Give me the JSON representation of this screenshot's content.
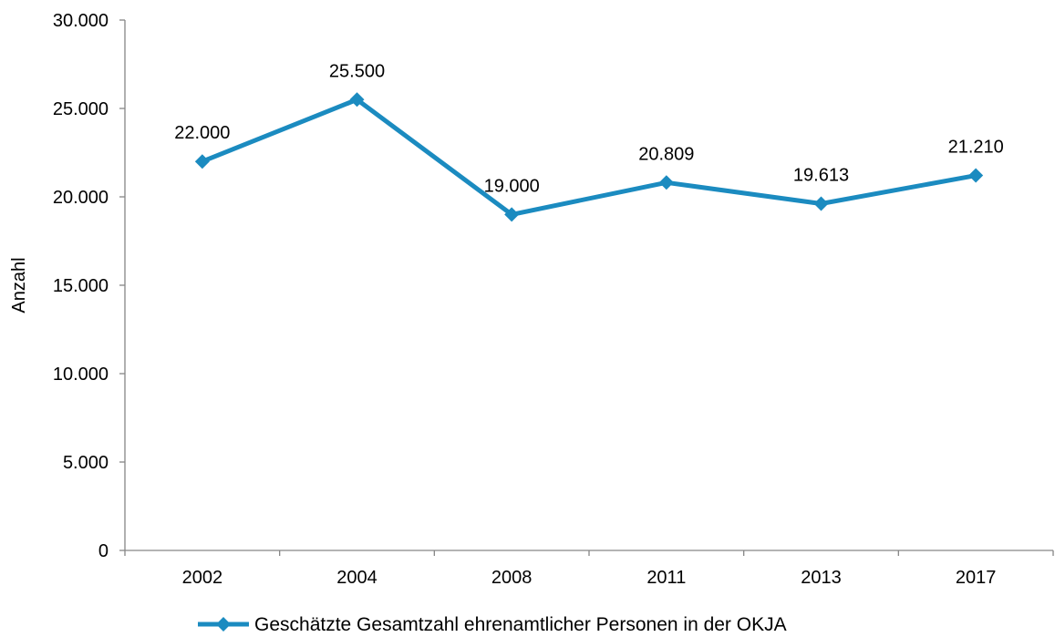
{
  "chart_data": {
    "type": "line",
    "title": "",
    "xlabel": "",
    "ylabel": "Anzahl",
    "categories": [
      "2002",
      "2004",
      "2008",
      "2011",
      "2013",
      "2017"
    ],
    "ylim": [
      0,
      30000
    ],
    "yticks": [
      0,
      5000,
      10000,
      15000,
      20000,
      25000,
      30000
    ],
    "ytick_labels": [
      "0",
      "5.000",
      "10.000",
      "15.000",
      "20.000",
      "25.000",
      "30.000"
    ],
    "grid": false,
    "legend_position": "bottom",
    "series": [
      {
        "name": "Geschätzte Gesamtzahl ehrenamtlicher Personen in der OKJA",
        "values": [
          22000,
          25500,
          19000,
          20809,
          19613,
          21210
        ],
        "labels": [
          "22.000",
          "25.500",
          "19.000",
          "20.809",
          "19.613",
          "21.210"
        ],
        "color": "#1b8bc0",
        "marker": "diamond"
      }
    ],
    "axis_color": "#868686"
  }
}
